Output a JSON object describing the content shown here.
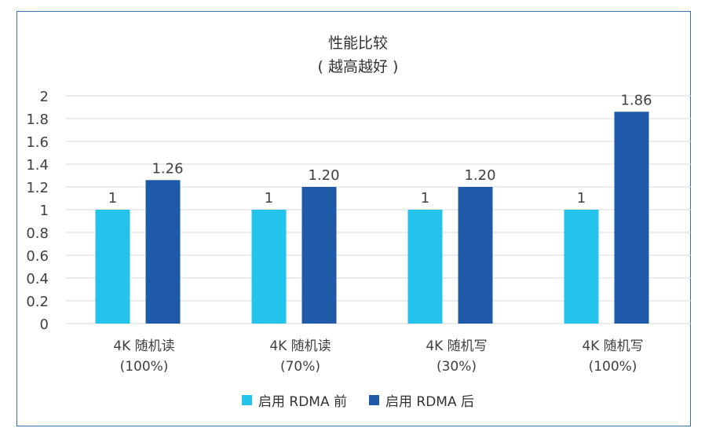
{
  "chart_data": {
    "type": "bar",
    "title": "性能比较",
    "subtitle": "( 越高越好 )",
    "categories": [
      [
        "4K 随机读",
        "(100%)"
      ],
      [
        "4K 随机读",
        "(70%)"
      ],
      [
        "4K 随机写",
        "(30%)"
      ],
      [
        "4K 随机写",
        "(100%)"
      ]
    ],
    "series": [
      {
        "name": "启用 RDMA 前",
        "color": "#23c3ec",
        "values": [
          1,
          1,
          1,
          1
        ],
        "labels": [
          "1",
          "1",
          "1",
          "1"
        ]
      },
      {
        "name": "启用 RDMA 后",
        "color": "#1f5aa8",
        "values": [
          1.26,
          1.2,
          1.2,
          1.86
        ],
        "labels": [
          "1.26",
          "1.20",
          "1.20",
          "1.86"
        ]
      }
    ],
    "ylim": [
      0,
      2
    ],
    "yticks": [
      "0",
      "0.2",
      "0.4",
      "0.6",
      "0.8",
      "1",
      "1.2",
      "1.4",
      "1.6",
      "1.8",
      "2"
    ],
    "grid": true,
    "legend_position": "bottom"
  }
}
